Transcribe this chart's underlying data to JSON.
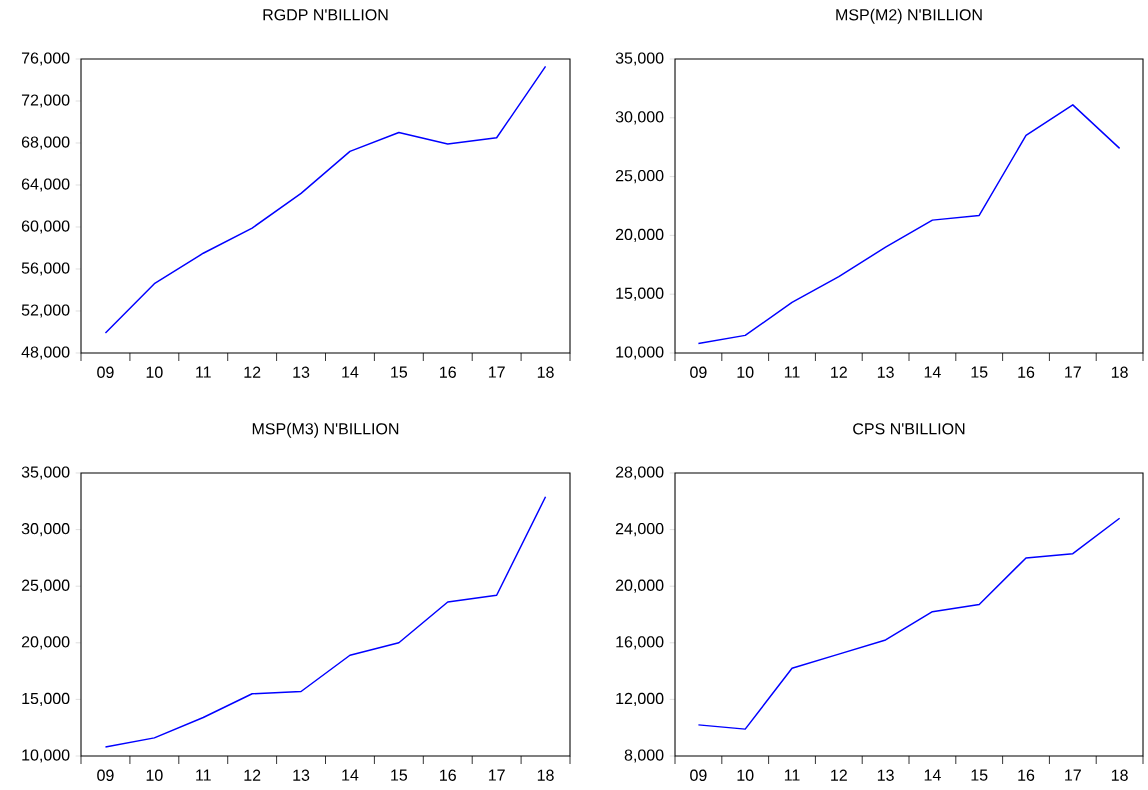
{
  "chart_data": [
    {
      "type": "line",
      "title": "RGDP N'BILLION",
      "categories": [
        "09",
        "10",
        "11",
        "12",
        "13",
        "14",
        "15",
        "16",
        "17",
        "18"
      ],
      "values": [
        49900,
        54600,
        57500,
        59900,
        63200,
        67200,
        69000,
        67900,
        68500,
        75300
      ],
      "color": "#0000ff",
      "ylim": [
        48000,
        76000
      ],
      "yticks": [
        {
          "value": 48000,
          "label": "48,000"
        },
        {
          "value": 52000,
          "label": "52,000"
        },
        {
          "value": 56000,
          "label": "56,000"
        },
        {
          "value": 60000,
          "label": "60,000"
        },
        {
          "value": 64000,
          "label": "64,000"
        },
        {
          "value": 68000,
          "label": "68,000"
        },
        {
          "value": 72000,
          "label": "72,000"
        },
        {
          "value": 76000,
          "label": "76,000"
        }
      ]
    },
    {
      "type": "line",
      "title": "MSP(M2) N'BILLION",
      "categories": [
        "09",
        "10",
        "11",
        "12",
        "13",
        "14",
        "15",
        "16",
        "17",
        "18"
      ],
      "values": [
        10800,
        11500,
        14300,
        16500,
        19000,
        21300,
        21700,
        28500,
        31100,
        27400
      ],
      "color": "#0000ff",
      "ylim": [
        10000,
        35000
      ],
      "yticks": [
        {
          "value": 10000,
          "label": "10,000"
        },
        {
          "value": 15000,
          "label": "15,000"
        },
        {
          "value": 20000,
          "label": "20,000"
        },
        {
          "value": 25000,
          "label": "25,000"
        },
        {
          "value": 30000,
          "label": "30,000"
        },
        {
          "value": 35000,
          "label": "35,000"
        }
      ]
    },
    {
      "type": "line",
      "title": "MSP(M3) N'BILLION",
      "categories": [
        "09",
        "10",
        "11",
        "12",
        "13",
        "14",
        "15",
        "16",
        "17",
        "18"
      ],
      "values": [
        10800,
        11600,
        13400,
        15500,
        15700,
        18900,
        20000,
        23600,
        24200,
        32900
      ],
      "color": "#0000ff",
      "ylim": [
        10000,
        35000
      ],
      "yticks": [
        {
          "value": 10000,
          "label": "10,000"
        },
        {
          "value": 15000,
          "label": "15,000"
        },
        {
          "value": 20000,
          "label": "20,000"
        },
        {
          "value": 25000,
          "label": "25,000"
        },
        {
          "value": 30000,
          "label": "30,000"
        },
        {
          "value": 35000,
          "label": "35,000"
        }
      ]
    },
    {
      "type": "line",
      "title": "CPS N'BILLION",
      "categories": [
        "09",
        "10",
        "11",
        "12",
        "13",
        "14",
        "15",
        "16",
        "17",
        "18"
      ],
      "values": [
        10200,
        9900,
        14200,
        15200,
        16200,
        18200,
        18700,
        22000,
        22300,
        24800
      ],
      "color": "#0000ff",
      "ylim": [
        8000,
        28000
      ],
      "yticks": [
        {
          "value": 8000,
          "label": "8,000"
        },
        {
          "value": 12000,
          "label": "12,000"
        },
        {
          "value": 16000,
          "label": "16,000"
        },
        {
          "value": 20000,
          "label": "20,000"
        },
        {
          "value": 24000,
          "label": "24,000"
        },
        {
          "value": 28000,
          "label": "28,000"
        }
      ]
    }
  ]
}
